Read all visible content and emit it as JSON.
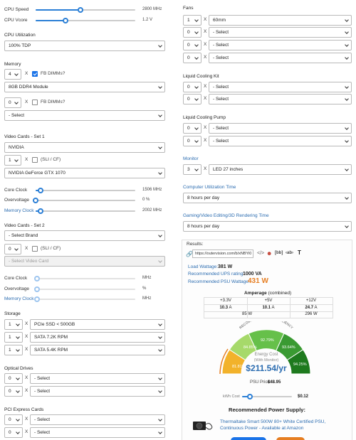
{
  "cpu": {
    "speed_label": "CPU Speed",
    "speed_value": "2800 MHz",
    "speed_level": 0.45,
    "vcore_label": "CPU Vcore",
    "vcore_value": "1.2 V",
    "vcore_level": 0.3,
    "util_label": "CPU Utilization",
    "util_value": "100% TDP"
  },
  "memory": {
    "label": "Memory",
    "row1_qty": "4",
    "row1_type": "8GB DDR4 Module",
    "fb1_label": "FB DIMMs?",
    "row2_qty": "0",
    "row2_type": "- Select",
    "fb2_label": "FB DIMMs?"
  },
  "video1": {
    "label": "Video Cards - Set 1",
    "brand": "NVIDIA",
    "qty": "1",
    "sli_label": "(SLI / CF)",
    "model": "NVIDIA GeForce GTX 1070",
    "core_label": "Core Clock",
    "core_value": "1506 MHz",
    "core_level": 0.05,
    "ov_label": "Overvoltage",
    "ov_value": "0 %",
    "ov_level": 0.0,
    "mem_label": "Memory Clock",
    "mem_value": "2002 MHz",
    "mem_level": 0.05
  },
  "video2": {
    "label": "Video Cards - Set 2",
    "brand": "- Select Brand",
    "qty": "0",
    "sli_label": "(SLI / CF)",
    "model": "- Select Video Card",
    "core_label": "Core Clock",
    "core_value": "MHz",
    "ov_label": "Overvoltage",
    "ov_value": "%",
    "mem_label": "Memory Clock",
    "mem_value": "MHz"
  },
  "storage": {
    "label": "Storage",
    "rows": [
      {
        "qty": "1",
        "type": "PCIe SSD < 500GB"
      },
      {
        "qty": "1",
        "type": "SATA 7.2K RPM"
      },
      {
        "qty": "1",
        "type": "SATA 5.4K RPM"
      }
    ]
  },
  "optical": {
    "label": "Optical Drives",
    "rows": [
      {
        "qty": "0",
        "type": "- Select"
      },
      {
        "qty": "0",
        "type": "- Select"
      }
    ]
  },
  "pci": {
    "label": "PCI Express Cards",
    "rows": [
      {
        "qty": "0",
        "type": "- Select"
      },
      {
        "qty": "0",
        "type": "- Select"
      }
    ]
  },
  "fans": {
    "label": "Fans",
    "rows": [
      {
        "qty": "1",
        "type": "60mm"
      },
      {
        "qty": "0",
        "type": "- Select"
      },
      {
        "qty": "0",
        "type": "- Select"
      },
      {
        "qty": "0",
        "type": "- Select"
      }
    ]
  },
  "liquid_kit": {
    "label": "Liquid Cooling Kit",
    "rows": [
      {
        "qty": "0",
        "type": "- Select"
      },
      {
        "qty": "0",
        "type": "- Select"
      }
    ]
  },
  "liquid_pump": {
    "label": "Liquid Cooling Pump",
    "rows": [
      {
        "qty": "0",
        "type": "- Select"
      },
      {
        "qty": "0",
        "type": "- Select"
      }
    ]
  },
  "monitor": {
    "label": "Monitor",
    "qty": "3",
    "type": "LED 27 inches"
  },
  "util_time": {
    "label": "Computer Utilization Time",
    "value": "8 hours per day"
  },
  "gaming_time": {
    "label": "Gaming/Video Editing/3D Rendering Time",
    "value": "8 hours per day"
  },
  "results": {
    "label": "Results:",
    "url": "https://outervision.com/b/xNBYi0",
    "load_label": "Load Wattage:",
    "load_value": "381 W",
    "ups_label": "Recommended UPS rating:",
    "ups_value": "1000 VA",
    "psu_label": "Recommended PSU Wattage:",
    "psu_value": "431 W",
    "amp_title": "Amperage",
    "amp_sub": "(combined)",
    "amp_headers": [
      "+3.3V",
      "+5V",
      "+12V"
    ],
    "amp_values": [
      "10.3",
      "10.1",
      "24.7"
    ],
    "amp_unit": "A",
    "watt_values": [
      "85 W",
      "296 W"
    ],
    "gauge_title": "RECOMMENDED PSU EFFICIENCY",
    "gauge_segments": [
      "81.81%",
      "84.85%",
      "92.79%",
      "93.64%",
      "94.25%"
    ],
    "energy_label": "Energy Cost",
    "energy_sub": "(With Monitor)",
    "energy_value": "$211.54/yr",
    "psu_price_label": "PSU Price:",
    "psu_price": "$48.95",
    "kwh_label": "kWh Cost",
    "kwh_value": "$0.12",
    "kwh_level": 0.15,
    "rec_title": "Recommended Power Supply:",
    "rec_link": "Thermaltake Smart 500W 80+ White Certified PSU, Continuous Power - Available at Amazon"
  },
  "colors": {
    "accent": "#2b7fd6",
    "orange": "#e67e22",
    "gauge_green_dark": "#1e7a1e",
    "gauge_yellow": "#f2b22b"
  }
}
